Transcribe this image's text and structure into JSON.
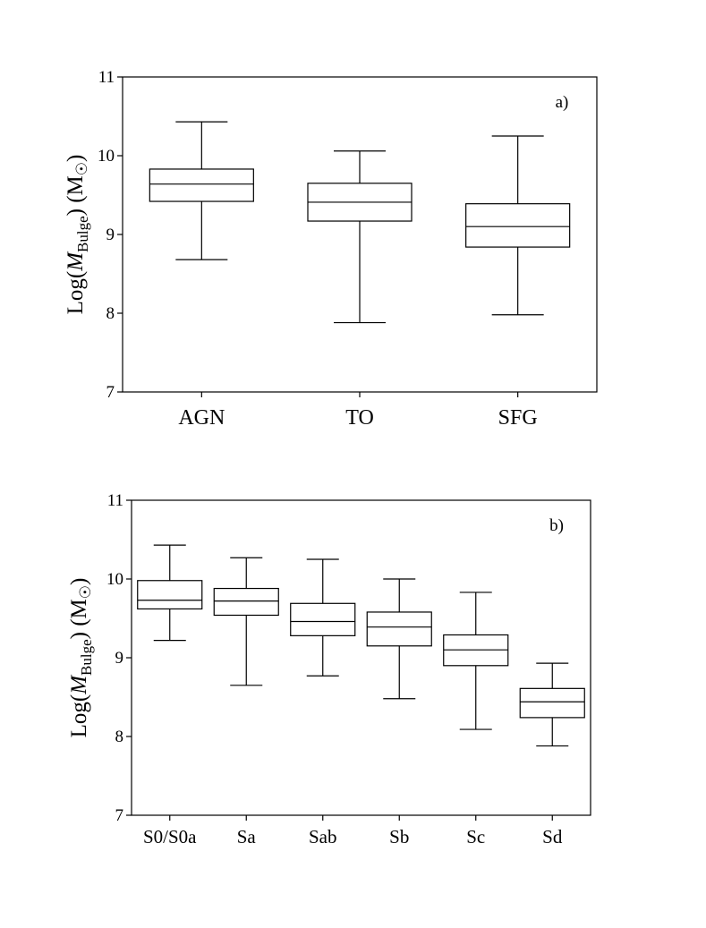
{
  "chart_data": [
    {
      "type": "box",
      "panel_label": "a)",
      "ylabel": {
        "prefix": "Log(",
        "italic": "M",
        "sub": "Bulge",
        "suffix": ") (M",
        "sun": "☉",
        "close": ")"
      },
      "ylim": [
        7,
        11
      ],
      "yticks": [
        "7",
        "8",
        "9",
        "10",
        "11"
      ],
      "grid": false,
      "categories": [
        "AGN",
        "TO",
        "SFG"
      ],
      "boxes": [
        {
          "min": 8.68,
          "q1": 9.42,
          "median": 9.64,
          "q3": 9.83,
          "max": 10.43
        },
        {
          "min": 7.88,
          "q1": 9.17,
          "median": 9.41,
          "q3": 9.65,
          "max": 10.06
        },
        {
          "min": 7.98,
          "q1": 8.84,
          "median": 9.1,
          "q3": 9.39,
          "max": 10.25
        }
      ]
    },
    {
      "type": "box",
      "panel_label": "b)",
      "ylabel": {
        "prefix": "Log(",
        "italic": "M",
        "sub": "Bulge",
        "suffix": ") (M",
        "sun": "☉",
        "close": ")"
      },
      "ylim": [
        7,
        11
      ],
      "yticks": [
        "7",
        "8",
        "9",
        "10",
        "11"
      ],
      "grid": false,
      "categories": [
        "S0/S0a",
        "Sa",
        "Sab",
        "Sb",
        "Sc",
        "Sd"
      ],
      "boxes": [
        {
          "min": 9.22,
          "q1": 9.62,
          "median": 9.73,
          "q3": 9.98,
          "max": 10.43
        },
        {
          "min": 8.65,
          "q1": 9.54,
          "median": 9.72,
          "q3": 9.88,
          "max": 10.27
        },
        {
          "min": 8.77,
          "q1": 9.28,
          "median": 9.46,
          "q3": 9.69,
          "max": 10.25
        },
        {
          "min": 8.48,
          "q1": 9.15,
          "median": 9.39,
          "q3": 9.58,
          "max": 10.0
        },
        {
          "min": 8.09,
          "q1": 8.9,
          "median": 9.1,
          "q3": 9.29,
          "max": 9.83
        },
        {
          "min": 7.88,
          "q1": 8.24,
          "median": 8.44,
          "q3": 8.61,
          "max": 8.93
        }
      ]
    }
  ]
}
